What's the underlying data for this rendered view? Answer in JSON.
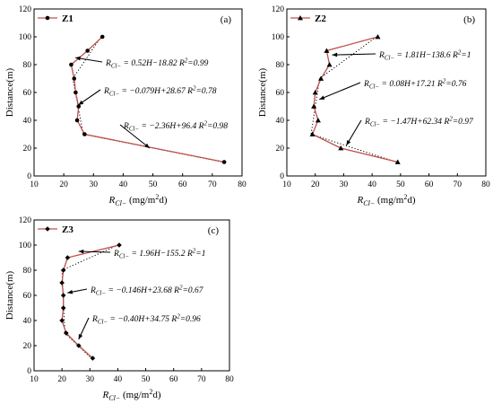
{
  "chart_data": [
    {
      "type": "line",
      "panel": "(a)",
      "legend": "Z1",
      "marker": "circle",
      "xlabel": "RCl− (mg/m2d)",
      "ylabel": "Distance(m)",
      "xlim": [
        10,
        80
      ],
      "ylim": [
        0,
        120
      ],
      "xticks": [
        10,
        20,
        30,
        40,
        50,
        60,
        70,
        80
      ],
      "yticks": [
        0,
        20,
        40,
        60,
        80,
        100,
        120
      ],
      "series": [
        {
          "name": "Z1",
          "points": [
            [
              33,
              100
            ],
            [
              28,
              90
            ],
            [
              22.5,
              80
            ],
            [
              23.5,
              70
            ],
            [
              24,
              60
            ],
            [
              25,
              50
            ],
            [
              24.5,
              40
            ],
            [
              27,
              30
            ],
            [
              74,
              10
            ]
          ]
        }
      ],
      "annotations": [
        {
          "text": "RCl− = 0.52H−18.82  R2=0.99",
          "target": [
            23,
            85
          ]
        },
        {
          "text": "RCl− = −0.079H+28.67  R2=0.78",
          "target": [
            24,
            51
          ]
        },
        {
          "text": "RCl− = −2.36H+96.4  R2=0.98",
          "target": [
            48,
            20
          ]
        }
      ]
    },
    {
      "type": "line",
      "panel": "(b)",
      "legend": "Z2",
      "marker": "triangle",
      "xlabel": "RCl− (mg/m2d)",
      "ylabel": "Distance(m)",
      "xlim": [
        10,
        80
      ],
      "ylim": [
        0,
        120
      ],
      "xticks": [
        10,
        20,
        30,
        40,
        50,
        60,
        70,
        80
      ],
      "yticks": [
        0,
        20,
        40,
        60,
        80,
        100,
        120
      ],
      "series": [
        {
          "name": "Z2",
          "points": [
            [
              42,
              100
            ],
            [
              24,
              90
            ],
            [
              25,
              80
            ],
            [
              22,
              70
            ],
            [
              20,
              60
            ],
            [
              19.5,
              50
            ],
            [
              21,
              40
            ],
            [
              19,
              30
            ],
            [
              29,
              20
            ],
            [
              49,
              10
            ]
          ]
        }
      ],
      "annotations": [
        {
          "text": "RCl− = 1.81H−138.6  R2=1",
          "target": [
            25,
            87
          ]
        },
        {
          "text": "RCl− = 0.08H+17.21  R2=0.76",
          "target": [
            20.5,
            55
          ]
        },
        {
          "text": "RCl− = −1.47H+62.34  R2=0.97",
          "target": [
            30,
            22
          ]
        }
      ]
    },
    {
      "type": "line",
      "panel": "(c)",
      "legend": "Z3",
      "marker": "diamond",
      "xlabel": "RCl− (mg/m2d)",
      "ylabel": "Distance(m)",
      "xlim": [
        10,
        80
      ],
      "ylim": [
        0,
        120
      ],
      "xticks": [
        10,
        20,
        30,
        40,
        50,
        60,
        70,
        80
      ],
      "yticks": [
        0,
        20,
        40,
        60,
        80,
        100,
        120
      ],
      "series": [
        {
          "name": "Z3",
          "points": [
            [
              40.5,
              100
            ],
            [
              22,
              90
            ],
            [
              20.5,
              80
            ],
            [
              20,
              70
            ],
            [
              20.5,
              60
            ],
            [
              20.5,
              50
            ],
            [
              20,
              40
            ],
            [
              21.5,
              30
            ],
            [
              26,
              20
            ],
            [
              31,
              10
            ]
          ]
        }
      ],
      "annotations": [
        {
          "text": "RCl− = 1.96H−155.2  R2=1",
          "target": [
            25,
            95
          ]
        },
        {
          "text": "RCl− = −0.146H+23.68  R2=0.67",
          "target": [
            21,
            62
          ]
        },
        {
          "text": "RCl− = −0.40H+34.75  R2=0.96",
          "target": [
            25,
            25
          ]
        }
      ]
    }
  ]
}
